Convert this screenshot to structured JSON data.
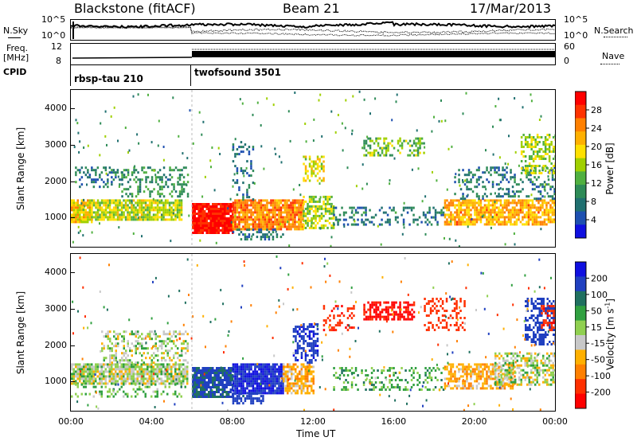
{
  "header": {
    "radar": "Blackstone (fitACF)",
    "beam": "Beam 21",
    "date": "17/Mar/2013"
  },
  "left_labels": {
    "nsky": "N.Sky",
    "freq": "Freq.",
    "freq_unit": "[MHz]",
    "cpid": "CPID"
  },
  "right_labels": {
    "nsearch": "N.Search",
    "nave": "Nave"
  },
  "noise_axis": {
    "left_ticks": [
      "10^5",
      "10^0"
    ],
    "right_ticks": [
      "10^5",
      "10^0"
    ]
  },
  "freq_axis": {
    "left_ticks": [
      "12",
      "8"
    ],
    "right_ticks": [
      "60",
      "0"
    ]
  },
  "cpid_segments": [
    {
      "label": "rbsp-tau 210",
      "start_hour": 0,
      "end_hour": 6
    },
    {
      "label": "twofsound 3501",
      "start_hour": 6,
      "end_hour": 24
    }
  ],
  "chart_data": [
    {
      "type": "heatmap",
      "title": "",
      "quantity": "Power",
      "xlabel": "",
      "ylabel": "Slant Range [km]",
      "xlim": [
        0,
        24
      ],
      "ylim": [
        200,
        4500
      ],
      "y_ticks": [
        1000,
        2000,
        3000,
        4000
      ],
      "colorbar": {
        "label": "Power [dB]",
        "ticks": [
          "28",
          "24",
          "20",
          "16",
          "12",
          "8",
          "4"
        ],
        "colors": [
          "#ff0000",
          "#ff3300",
          "#ff8000",
          "#ffb000",
          "#ffe000",
          "#a0d000",
          "#50b040",
          "#2e8b57",
          "#207070",
          "#1e50b0",
          "#1010e0"
        ]
      },
      "scatter_regions": [
        {
          "t0": 0.0,
          "t1": 1.0,
          "r0": 900,
          "r1": 1500,
          "level": 18,
          "density": 0.9
        },
        {
          "t0": 1.0,
          "t1": 5.5,
          "r0": 950,
          "r1": 1500,
          "level": 15,
          "density": 0.85
        },
        {
          "t0": 0.2,
          "t1": 2.5,
          "r0": 1850,
          "r1": 2400,
          "level": 6,
          "density": 0.35
        },
        {
          "t0": 2.5,
          "t1": 5.8,
          "r0": 1600,
          "r1": 2400,
          "level": 8,
          "density": 0.35
        },
        {
          "t0": 6.0,
          "t1": 8.0,
          "r0": 600,
          "r1": 1400,
          "level": 28,
          "density": 0.95
        },
        {
          "t0": 8.0,
          "t1": 11.5,
          "r0": 700,
          "r1": 1500,
          "level": 22,
          "density": 0.9
        },
        {
          "t0": 11.5,
          "t1": 13.0,
          "r0": 700,
          "r1": 1600,
          "level": 14,
          "density": 0.6
        },
        {
          "t0": 8.0,
          "t1": 10.5,
          "r0": 400,
          "r1": 700,
          "level": 6,
          "density": 0.4
        },
        {
          "t0": 11.5,
          "t1": 12.5,
          "r0": 2000,
          "r1": 2700,
          "level": 16,
          "density": 0.5
        },
        {
          "t0": 8.0,
          "t1": 9.0,
          "r0": 1500,
          "r1": 3100,
          "level": 5,
          "density": 0.2
        },
        {
          "t0": 13.0,
          "t1": 18.5,
          "r0": 800,
          "r1": 1300,
          "level": 6,
          "density": 0.3
        },
        {
          "t0": 14.5,
          "t1": 17.5,
          "r0": 2700,
          "r1": 3200,
          "level": 12,
          "density": 0.35
        },
        {
          "t0": 18.5,
          "t1": 24.0,
          "r0": 800,
          "r1": 1500,
          "level": 20,
          "density": 0.75
        },
        {
          "t0": 19.0,
          "t1": 24.0,
          "r0": 1500,
          "r1": 2400,
          "level": 6,
          "density": 0.3
        },
        {
          "t0": 22.3,
          "t1": 24.0,
          "r0": 2200,
          "r1": 3300,
          "level": 14,
          "density": 0.45
        }
      ]
    },
    {
      "type": "heatmap",
      "title": "",
      "quantity": "Velocity",
      "xlabel": "Time UT",
      "ylabel": "Slant Range [km]",
      "xlim": [
        0,
        24
      ],
      "ylim": [
        200,
        4500
      ],
      "y_ticks": [
        1000,
        2000,
        3000,
        4000
      ],
      "x_ticks": [
        "00:00",
        "04:00",
        "08:00",
        "12:00",
        "16:00",
        "20:00",
        "00:00"
      ],
      "colorbar": {
        "label": "Velocity [m s",
        "label_exponent": "-1",
        "label_close": "]",
        "ticks": [
          "200",
          "100",
          "50",
          "15",
          "-15",
          "-50",
          "-100",
          "-200"
        ],
        "colors": [
          "#1010e0",
          "#2040c0",
          "#207060",
          "#30a040",
          "#90d050",
          "#c8c8c8",
          "#ffb000",
          "#ff8000",
          "#ff3000",
          "#ff0000"
        ]
      },
      "scatter_regions": [
        {
          "t0": 0.0,
          "t1": 5.8,
          "r0": 950,
          "r1": 1500,
          "level": 0,
          "density": 0.85
        },
        {
          "t0": 1.5,
          "t1": 5.8,
          "r0": 1500,
          "r1": 2400,
          "level": 0,
          "density": 0.35
        },
        {
          "t0": 0.0,
          "t1": 5.8,
          "r0": 600,
          "r1": 950,
          "level": 25,
          "density": 0.25
        },
        {
          "t0": 6.0,
          "t1": 8.0,
          "r0": 600,
          "r1": 1400,
          "level": 120,
          "density": 0.9
        },
        {
          "t0": 8.0,
          "t1": 10.5,
          "r0": 700,
          "r1": 1500,
          "level": 200,
          "density": 0.9
        },
        {
          "t0": 10.5,
          "t1": 12.0,
          "r0": 700,
          "r1": 1500,
          "level": -40,
          "density": 0.7
        },
        {
          "t0": 11.0,
          "t1": 12.2,
          "r0": 1500,
          "r1": 2600,
          "level": 180,
          "density": 0.55
        },
        {
          "t0": 8.0,
          "t1": 9.5,
          "r0": 400,
          "r1": 700,
          "level": 150,
          "density": 0.6
        },
        {
          "t0": 12.5,
          "t1": 14.0,
          "r0": 2400,
          "r1": 3100,
          "level": -180,
          "density": 0.3
        },
        {
          "t0": 14.5,
          "t1": 17.0,
          "r0": 2700,
          "r1": 3200,
          "level": -220,
          "density": 0.55
        },
        {
          "t0": 17.5,
          "t1": 19.5,
          "r0": 2400,
          "r1": 3300,
          "level": -160,
          "density": 0.35
        },
        {
          "t0": 13.0,
          "t1": 18.5,
          "r0": 800,
          "r1": 1400,
          "level": 30,
          "density": 0.3
        },
        {
          "t0": 18.5,
          "t1": 22.0,
          "r0": 800,
          "r1": 1500,
          "level": -40,
          "density": 0.6
        },
        {
          "t0": 21.0,
          "t1": 24.0,
          "r0": 900,
          "r1": 1800,
          "level": 0,
          "density": 0.55
        },
        {
          "t0": 22.5,
          "t1": 24.0,
          "r0": 2000,
          "r1": 3300,
          "level": 170,
          "density": 0.5
        },
        {
          "t0": 23.3,
          "t1": 24.0,
          "r0": 2400,
          "r1": 3100,
          "level": -180,
          "density": 0.4
        }
      ]
    }
  ]
}
